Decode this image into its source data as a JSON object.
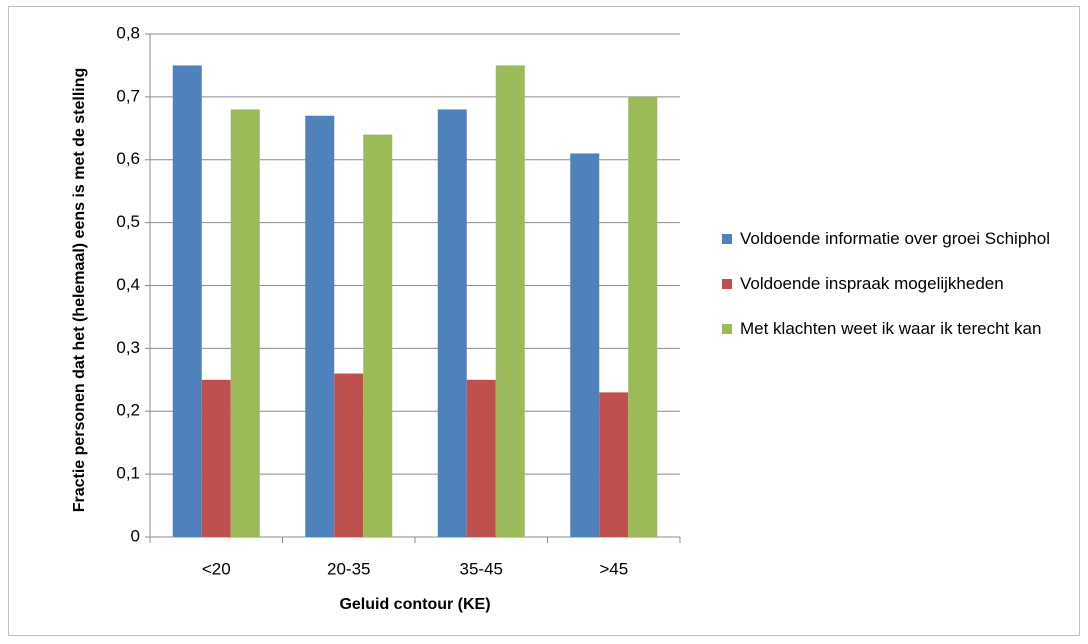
{
  "chart_data": {
    "type": "bar",
    "x_label": "Geluid contour (KE)",
    "y_label": "Fractie personen dat het (helemaal) eens is met de stelling",
    "categories": [
      "<20",
      "20-35",
      "35-45",
      ">45"
    ],
    "series": [
      {
        "name": "Voldoende informatie over groei Schiphol",
        "color": "#4f81bd",
        "values": [
          0.75,
          0.67,
          0.68,
          0.61
        ]
      },
      {
        "name": "Voldoende inspraak mogelijkheden",
        "color": "#c0504d",
        "values": [
          0.25,
          0.26,
          0.25,
          0.23
        ]
      },
      {
        "name": "Met klachten weet ik waar ik terecht kan",
        "color": "#9bbb59",
        "values": [
          0.68,
          0.64,
          0.75,
          0.7
        ]
      }
    ],
    "ylim": [
      0,
      0.8
    ],
    "yticks": [
      0,
      {
        "value": 0.1,
        "label": "0,1"
      },
      {
        "value": 0.2,
        "label": "0,2"
      },
      {
        "value": 0.3,
        "label": "0,3"
      },
      {
        "value": 0.4,
        "label": "0,4"
      },
      {
        "value": 0.5,
        "label": "0,5"
      },
      {
        "value": 0.6,
        "label": "0,6"
      },
      {
        "value": 0.7,
        "label": "0,7"
      },
      {
        "value": 0.8,
        "label": "0,8"
      }
    ],
    "grid": true,
    "legend": "right"
  }
}
